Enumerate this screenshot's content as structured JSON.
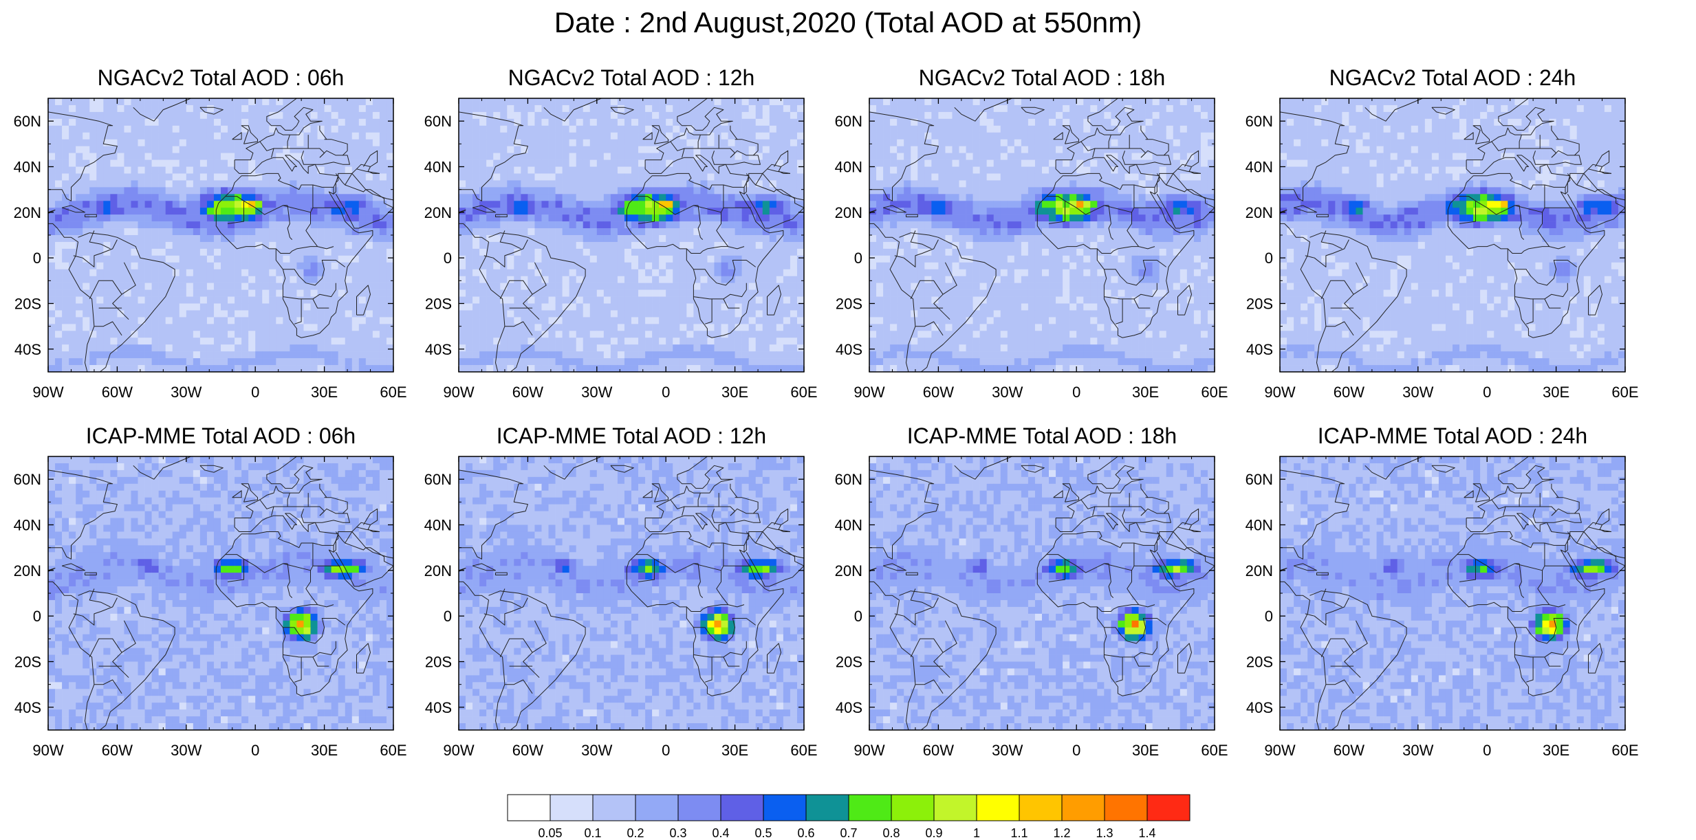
{
  "title": "Date : 2nd August,2020 (Total AOD at 550nm)",
  "axes": {
    "lon_ticks": [
      "90W",
      "60W",
      "30W",
      "0",
      "30E",
      "60E"
    ],
    "lat_ticks": [
      "60N",
      "40N",
      "20N",
      "0",
      "20S",
      "40S"
    ],
    "lon_values": [
      -90,
      -60,
      -30,
      0,
      30,
      60
    ],
    "lat_values": [
      60,
      40,
      20,
      0,
      -20,
      -40
    ],
    "lon_range": [
      -90,
      60
    ],
    "lat_range": [
      -50,
      70
    ]
  },
  "panels": [
    {
      "title": "NGACv2 Total AOD : 06h",
      "model": "NGACv2",
      "hour": "06h"
    },
    {
      "title": "NGACv2 Total AOD : 12h",
      "model": "NGACv2",
      "hour": "12h"
    },
    {
      "title": "NGACv2 Total AOD : 18h",
      "model": "NGACv2",
      "hour": "18h"
    },
    {
      "title": "NGACv2 Total AOD : 24h",
      "model": "NGACv2",
      "hour": "24h"
    },
    {
      "title": "ICAP-MME Total AOD : 06h",
      "model": "ICAP-MME",
      "hour": "06h"
    },
    {
      "title": "ICAP-MME Total AOD : 12h",
      "model": "ICAP-MME",
      "hour": "12h"
    },
    {
      "title": "ICAP-MME Total AOD : 18h",
      "model": "ICAP-MME",
      "hour": "18h"
    },
    {
      "title": "ICAP-MME Total AOD : 24h",
      "model": "ICAP-MME",
      "hour": "24h"
    }
  ],
  "colorbar": {
    "labels": [
      "0.05",
      "0.1",
      "0.2",
      "0.3",
      "0.4",
      "0.5",
      "0.6",
      "0.7",
      "0.8",
      "0.9",
      "1",
      "1.1",
      "1.2",
      "1.3",
      "1.4"
    ],
    "colors": [
      "#ffffff",
      "#d6dffb",
      "#b4c3f7",
      "#93a9f6",
      "#7d8cf2",
      "#5f60e6",
      "#0a5ff0",
      "#0f9296",
      "#4fea16",
      "#8cf00a",
      "#c2f52a",
      "#ffff00",
      "#ffc500",
      "#ff9d00",
      "#ff7400",
      "#ff2a14"
    ]
  },
  "chart_data": {
    "type": "heatmap",
    "variable": "Total AOD at 550nm",
    "date": "2nd August,2020",
    "xlim": [
      -90,
      60
    ],
    "ylim": [
      -50,
      70
    ],
    "levels": [
      0.05,
      0.1,
      0.2,
      0.3,
      0.4,
      0.5,
      0.6,
      0.7,
      0.8,
      0.9,
      1,
      1.1,
      1.2,
      1.3,
      1.4
    ],
    "features": {
      "NGACv2": [
        {
          "kind": "band",
          "lon": [
            -95,
            62
          ],
          "lat": 20,
          "halfwidth": 10,
          "aod": 0.4
        },
        {
          "kind": "plume",
          "lon": -65,
          "lat": 22,
          "rx": 8,
          "ry": 6,
          "aod": 0.6
        },
        {
          "kind": "plume",
          "lon": -10,
          "lat": 22,
          "rx": 18,
          "ry": 8,
          "aod": 0.9
        },
        {
          "kind": "plume",
          "lon": -3,
          "lat": 23,
          "rx": 7,
          "ry": 4,
          "aod": 1.2
        },
        {
          "kind": "plume",
          "lon": 40,
          "lat": 22,
          "rx": 14,
          "ry": 6,
          "aod": 0.6
        },
        {
          "kind": "plume",
          "lon": 25,
          "lat": -5,
          "rx": 8,
          "ry": 8,
          "aod": 0.35
        },
        {
          "kind": "band",
          "lon": [
            -90,
            60
          ],
          "lat": -45,
          "halfwidth": 5,
          "aod": 0.25
        }
      ],
      "ICAP-MME": [
        {
          "kind": "band",
          "lon": [
            -90,
            60
          ],
          "lat": 18,
          "halfwidth": 14,
          "aod": 0.3
        },
        {
          "kind": "plume",
          "lon": -47,
          "lat": 22,
          "rx": 8,
          "ry": 5,
          "aod": 0.5
        },
        {
          "kind": "plume",
          "lon": -10,
          "lat": 21,
          "rx": 10,
          "ry": 5,
          "aod": 0.8
        },
        {
          "kind": "plume",
          "lon": 38,
          "lat": 21,
          "rx": 12,
          "ry": 5,
          "aod": 0.8
        },
        {
          "kind": "plume",
          "lon": 20,
          "lat": -4,
          "rx": 8,
          "ry": 7,
          "aod": 1.1
        },
        {
          "kind": "plume",
          "lon": 20,
          "lat": -4,
          "rx": 3,
          "ry": 3,
          "aod": 1.35
        }
      ]
    }
  }
}
